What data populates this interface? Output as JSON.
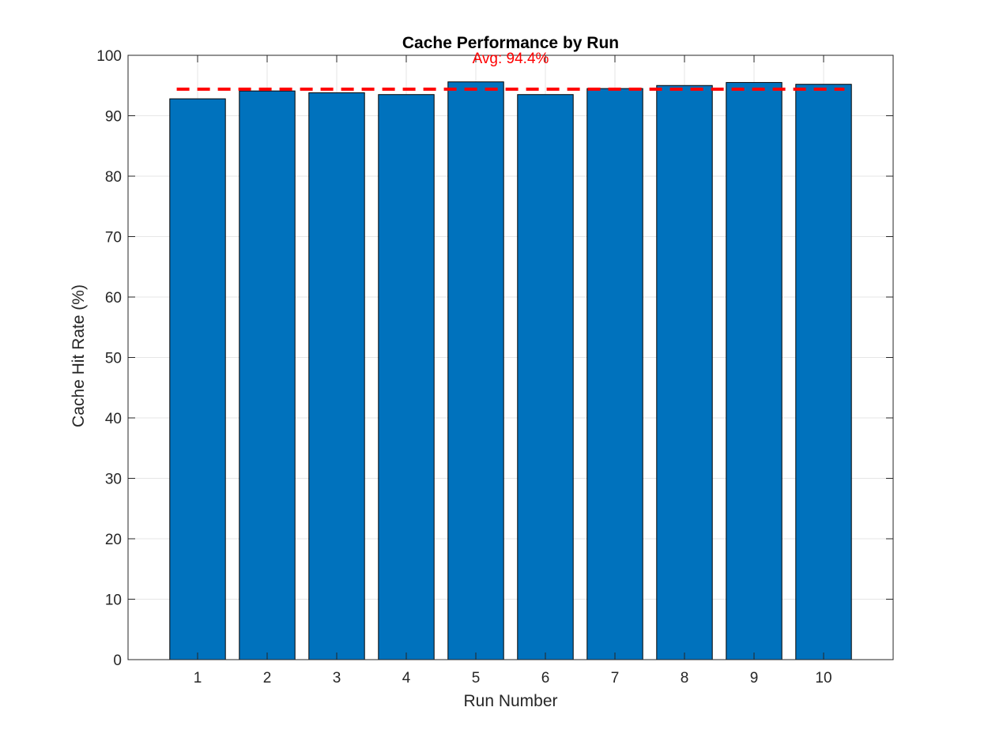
{
  "chart_data": {
    "type": "bar",
    "title": "Cache Performance by Run",
    "xlabel": "Run Number",
    "ylabel": "Cache Hit Rate (%)",
    "categories": [
      "1",
      "2",
      "3",
      "4",
      "5",
      "6",
      "7",
      "8",
      "9",
      "10"
    ],
    "values": [
      92.8,
      94.1,
      93.8,
      93.5,
      95.6,
      93.5,
      94.5,
      95.0,
      95.5,
      95.2
    ],
    "ylim": [
      0,
      100
    ],
    "yticks": [
      0,
      10,
      20,
      30,
      40,
      50,
      60,
      70,
      80,
      90,
      100
    ],
    "grid": true,
    "bar_color": "#0072BD",
    "average": {
      "value": 94.4,
      "label": "Avg: 94.4%",
      "color": "#ff0000",
      "style": "dashed"
    }
  }
}
